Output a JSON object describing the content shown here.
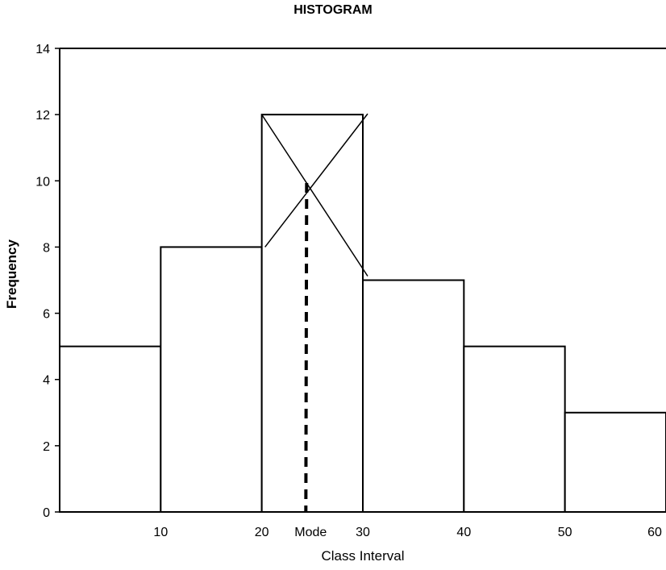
{
  "chart_data": {
    "type": "bar",
    "title": "HISTOGRAM",
    "xlabel": "Class Interval",
    "ylabel": "Frequency",
    "bins": [
      {
        "start": 0,
        "end": 10,
        "value": 5
      },
      {
        "start": 10,
        "end": 20,
        "value": 8
      },
      {
        "start": 20,
        "end": 30,
        "value": 12
      },
      {
        "start": 30,
        "end": 40,
        "value": 7
      },
      {
        "start": 40,
        "end": 50,
        "value": 5
      },
      {
        "start": 50,
        "end": 60,
        "value": 3
      }
    ],
    "x_ticks": [
      "10",
      "20",
      "30",
      "40",
      "50",
      "60"
    ],
    "y_ticks": [
      "0",
      "2",
      "4",
      "6",
      "8",
      "10",
      "12",
      "14"
    ],
    "ylim": [
      0,
      14
    ],
    "xlim": [
      0,
      60
    ],
    "mode_label": "Mode",
    "mode_value": 24.44,
    "grid": false,
    "legend": false
  }
}
